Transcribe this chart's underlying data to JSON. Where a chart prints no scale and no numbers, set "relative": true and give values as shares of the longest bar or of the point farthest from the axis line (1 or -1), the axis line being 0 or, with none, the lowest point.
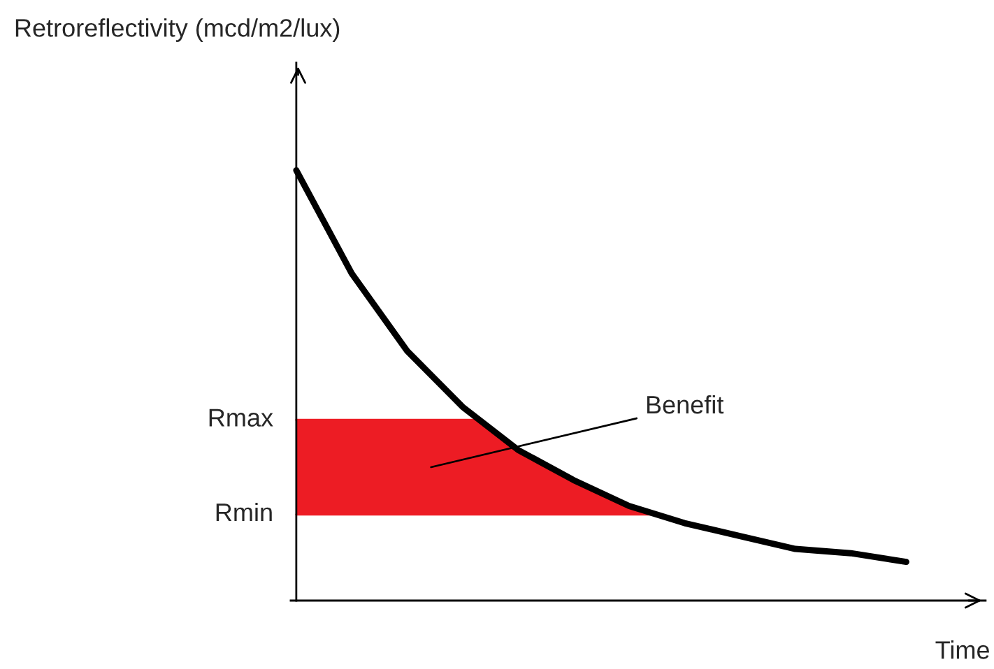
{
  "chart_data": {
    "type": "line",
    "relative": true,
    "xlabel": "Time",
    "categories": [
      null,
      null,
      null,
      null,
      null,
      null,
      null,
      null,
      null,
      null,
      null,
      null
    ],
    "series": [
      {
        "color": "#000000",
        "values": [
          1,
          0.76,
          0.58,
          0.45,
          0.35,
          0.28,
          0.22,
          0.18,
          0.15,
          0.12,
          0.11,
          0.09
        ]
      }
    ],
    "bands": [
      {
        "axis": "y",
        "from": 0.2,
        "to": 0.42,
        "color": "#ed1c24"
      }
    ],
    "ref_lines": [
      {
        "axis": "y",
        "value": 0.42,
        "label": "Rmax",
        "color": "#ed1c24"
      },
      {
        "axis": "y",
        "value": 0.2,
        "label": "Rmin",
        "color": "#ed1c24"
      }
    ],
    "annotations": [
      "Benefit",
      "Retroreflectivity (mcd/m2/lux)"
    ],
    "marker": "none",
    "line_style": "solid"
  }
}
